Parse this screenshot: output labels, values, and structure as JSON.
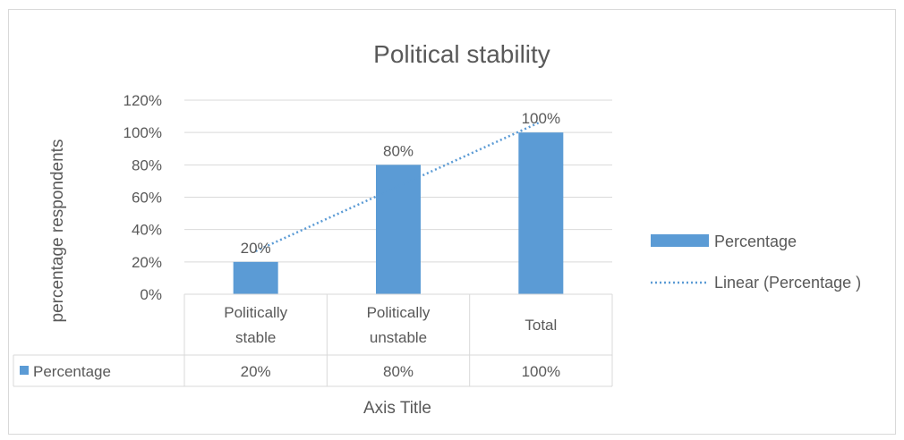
{
  "chart_data": {
    "type": "bar",
    "title": "Political stability",
    "ylabel": "percentage respondents",
    "xlabel": "Axis Title",
    "ylim": [
      0,
      120
    ],
    "yticks": [
      0,
      20,
      40,
      60,
      80,
      100,
      120
    ],
    "ytick_format": "%",
    "grid": true,
    "legend_position": "right",
    "categories": [
      {
        "line1": "Politically",
        "line2": "stable"
      },
      {
        "line1": "Politically",
        "line2": "unstable"
      },
      {
        "line1": "Total",
        "line2": ""
      }
    ],
    "series": [
      {
        "name": "Percentage",
        "values": [
          20,
          80,
          100
        ],
        "data_labels": [
          "20%",
          "80%",
          "100%"
        ],
        "color": "#5b9bd5"
      }
    ],
    "trendline": {
      "name": "Linear (Percentage )",
      "type": "linear",
      "style": "dotted",
      "color": "#5b9bd5"
    },
    "data_table": {
      "row_label": "Percentage",
      "values": [
        "20%",
        "80%",
        "100%"
      ]
    }
  }
}
